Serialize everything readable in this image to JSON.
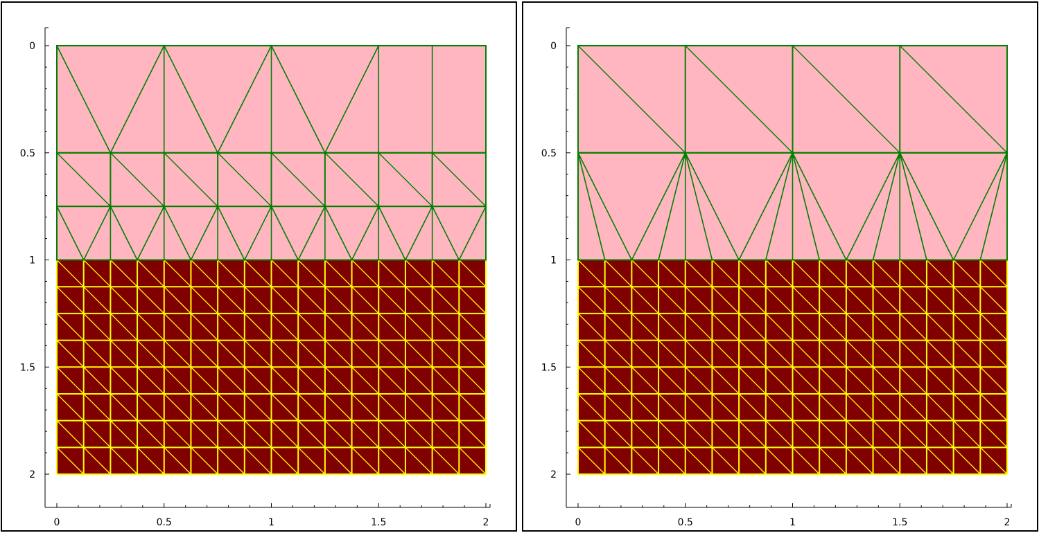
{
  "panels": [
    {
      "id": "left",
      "x_ticks": [
        "0",
        "0.5",
        "1",
        "1.5",
        "2"
      ],
      "y_ticks": [
        "0",
        "0.5",
        "1",
        "1.5",
        "2"
      ],
      "xlim": [
        0,
        2
      ],
      "ylim": [
        0,
        2
      ],
      "y_inverted": true,
      "top_region": {
        "fill": "#FFB6C1",
        "edge_color": "#008000",
        "y_range": [
          0,
          1
        ],
        "rows": [
          {
            "y0": 0,
            "y1": 0.5,
            "top_nodes": [
              0,
              0.5,
              1,
              1.5,
              1.75,
              2
            ],
            "bottom_nodes": [
              0,
              0.25,
              0.5,
              0.75,
              1,
              1.25,
              1.5,
              1.75,
              2
            ]
          },
          {
            "y0": 0.5,
            "y1": 0.75,
            "pattern": "quad-diagonal",
            "nx": 8
          },
          {
            "y0": 0.75,
            "y1": 1,
            "top_nodes": [
              0,
              0.25,
              0.5,
              0.75,
              1,
              1.25,
              1.5,
              1.75,
              2
            ],
            "bottom_nodes": [
              0,
              0.125,
              0.25,
              0.375,
              0.5,
              0.625,
              0.75,
              0.875,
              1,
              1.125,
              1.25,
              1.375,
              1.5,
              1.625,
              1.75,
              1.875,
              2
            ]
          }
        ]
      },
      "bottom_region": {
        "fill": "#800000",
        "edge_color": "#FFFF00",
        "y_range": [
          1,
          2
        ],
        "nx": 16,
        "ny": 8
      }
    },
    {
      "id": "right",
      "x_ticks": [
        "0",
        "0.5",
        "1",
        "1.5",
        "2"
      ],
      "y_ticks": [
        "0",
        "0.5",
        "1",
        "1.5",
        "2"
      ],
      "xlim": [
        0,
        2
      ],
      "ylim": [
        0,
        2
      ],
      "y_inverted": true,
      "top_region": {
        "fill": "#FFB6C1",
        "edge_color": "#008000",
        "y_range": [
          0,
          1
        ],
        "rows": [
          {
            "y0": 0,
            "y1": 0.5,
            "pattern": "quad-diagonal",
            "nx": 4
          },
          {
            "y0": 0.5,
            "y1": 1,
            "top_nodes": [
              0,
              0.5,
              1,
              1.5,
              2
            ],
            "bottom_nodes": [
              0,
              0.125,
              0.25,
              0.375,
              0.5,
              0.625,
              0.75,
              0.875,
              1,
              1.125,
              1.25,
              1.375,
              1.5,
              1.625,
              1.75,
              1.875,
              2
            ]
          }
        ]
      },
      "bottom_region": {
        "fill": "#800000",
        "edge_color": "#FFFF00",
        "y_range": [
          1,
          2
        ],
        "nx": 16,
        "ny": 8
      }
    }
  ]
}
